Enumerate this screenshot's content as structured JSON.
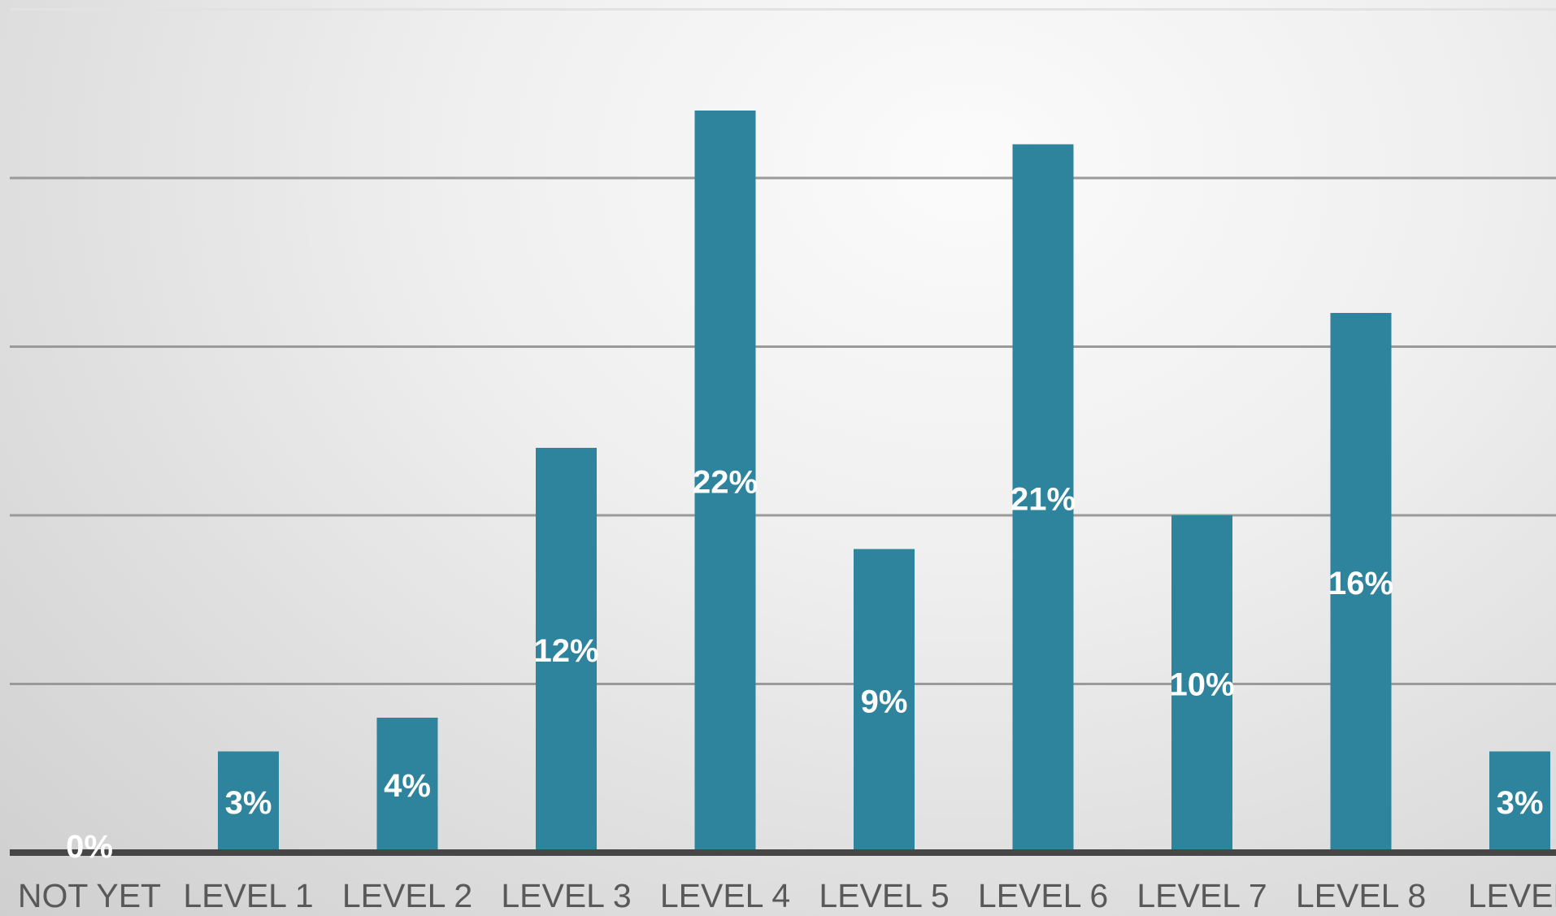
{
  "chart_data": {
    "type": "bar",
    "categories": [
      "NOT YET",
      "LEVEL 1",
      "LEVEL 2",
      "LEVEL 3",
      "LEVEL 4",
      "LEVEL 5",
      "LEVEL 6",
      "LEVEL 7",
      "LEVEL 8",
      "LEVEL"
    ],
    "values": [
      0,
      3,
      4,
      12,
      22,
      9,
      21,
      10,
      16,
      3
    ],
    "data_labels": [
      "0%",
      "3%",
      "4%",
      "12%",
      "22%",
      "9%",
      "21%",
      "10%",
      "16%",
      "3%"
    ],
    "ylim": [
      0,
      25
    ],
    "gridlines": [
      5,
      10,
      15,
      20,
      25
    ],
    "grid": true,
    "y_tick_labels_visible": false,
    "legend": false,
    "bar_color": "#2e849c",
    "label_color": "#ffffff",
    "axis_color": "#464646",
    "grid_color": "#9a9a9a"
  }
}
